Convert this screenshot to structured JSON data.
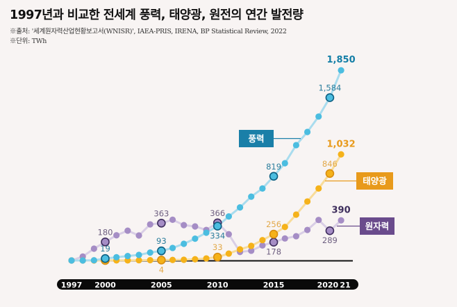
{
  "title": "1997년과 비교한 전세계 풍력, 태양광, 원전의 연간 발전량",
  "source": "※출처: '세계원자력산업현황보고서(WNISR)', IAEA-PRIS, IRENA, BP Statistical Review, 2022",
  "unit": "※단위: TWh",
  "chart_data": {
    "type": "line",
    "x": [
      1997,
      1998,
      1999,
      2000,
      2001,
      2002,
      2003,
      2004,
      2005,
      2006,
      2007,
      2008,
      2009,
      2010,
      2011,
      2012,
      2013,
      2014,
      2015,
      2016,
      2017,
      2018,
      2019,
      2020,
      2021
    ],
    "x_tick_labels": [
      "1997",
      "2000",
      "2005",
      "2010",
      "2015",
      "2020",
      "21"
    ],
    "x_tick_years": [
      1997,
      2000,
      2005,
      2010,
      2015,
      2020,
      2021
    ],
    "ylim": [
      0,
      1900
    ],
    "grid": false,
    "series": [
      {
        "name": "풍력",
        "key": "wind",
        "color": "#4bbde0",
        "line_color": "#a9dcee",
        "highlight_stroke": "#0c5e80",
        "label_color": "#2b7d9c",
        "bold_color": "#137ea6",
        "box_color": "#1a7fa8",
        "values": [
          0,
          0,
          2,
          19,
          31,
          43,
          54,
          77,
          93,
          122,
          162,
          212,
          270,
          334,
          428,
          516,
          621,
          700,
          819,
          946,
          1122,
          1250,
          1400,
          1584,
          1850
        ],
        "annotations": [
          {
            "year": 2000,
            "text": "19",
            "pos": "above"
          },
          {
            "year": 2005,
            "text": "93",
            "pos": "above"
          },
          {
            "year": 2010,
            "text": "334",
            "pos": "below"
          },
          {
            "year": 2015,
            "text": "819",
            "pos": "above"
          },
          {
            "year": 2020,
            "text": "1,584",
            "pos": "above"
          },
          {
            "year": 2021,
            "text": "1,850",
            "pos": "above",
            "bold": true
          }
        ]
      },
      {
        "name": "태양광",
        "key": "solar",
        "color": "#f5b21a",
        "line_color": "#f8dc9a",
        "highlight_stroke": "#d88d10",
        "label_color": "#e2a94a",
        "bold_color": "#e89a1b",
        "box_color": "#e89a1b",
        "values": [
          0,
          0,
          0,
          0,
          1,
          1,
          2,
          3,
          4,
          5,
          7,
          12,
          20,
          33,
          67,
          108,
          142,
          198,
          256,
          326,
          446,
          574,
          700,
          846,
          1032
        ],
        "annotations": [
          {
            "year": 2005,
            "text": "4",
            "pos": "below"
          },
          {
            "year": 2010,
            "text": "33",
            "pos": "above"
          },
          {
            "year": 2015,
            "text": "256",
            "pos": "above"
          },
          {
            "year": 2020,
            "text": "846",
            "pos": "above"
          },
          {
            "year": 2021,
            "text": "1,032",
            "pos": "above",
            "bold": true
          }
        ]
      },
      {
        "name": "원자력",
        "key": "nuclear",
        "color": "#a58dc5",
        "line_color": "#d9cee6",
        "highlight_stroke": "#3f2d5e",
        "label_color": "#6e5f80",
        "bold_color": "#3e2e5c",
        "box_color": "#6a4b8c",
        "values": [
          0,
          38,
          115,
          180,
          245,
          290,
          243,
          351,
          363,
          396,
          344,
          331,
          297,
          366,
          255,
          83,
          95,
          146,
          178,
          214,
          236,
          297,
          394,
          289,
          390
        ],
        "annotations": [
          {
            "year": 2000,
            "text": "180",
            "pos": "above"
          },
          {
            "year": 2005,
            "text": "363",
            "pos": "above"
          },
          {
            "year": 2010,
            "text": "366",
            "pos": "above"
          },
          {
            "year": 2015,
            "text": "178",
            "pos": "below"
          },
          {
            "year": 2020,
            "text": "289",
            "pos": "below"
          },
          {
            "year": 2021,
            "text": "390",
            "pos": "above",
            "bold": true
          }
        ]
      }
    ],
    "highlight_years": [
      2000,
      2005,
      2010,
      2015,
      2020
    ]
  }
}
